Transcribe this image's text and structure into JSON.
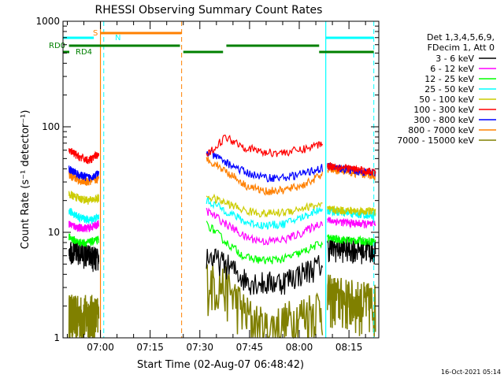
{
  "chart_data": {
    "type": "line",
    "title": "RHESSI Observing Summary Count Rates",
    "xlabel": "Start Time (02-Aug-07 06:48:42)",
    "ylabel": "Count Rate (s⁻¹ detector⁻¹)",
    "xlim": [
      "06:48:42",
      "08:24:00"
    ],
    "ylim": [
      1,
      1000
    ],
    "yscale": "log",
    "x_ticks": [
      "07:00",
      "07:15",
      "07:30",
      "07:45",
      "08:00",
      "08:15"
    ],
    "y_ticks": [
      "1",
      "10",
      "100",
      "1000"
    ],
    "grid": false,
    "legend_position": "top-right",
    "legend_header": [
      "Det 1,3,4,5,6,9,",
      "FDecim 1, Att 0"
    ],
    "timestamp": "16-Oct-2021 05:14",
    "series": [
      {
        "name": "3 - 6 keV",
        "color": "#000000",
        "values": {
          "p1": [
            7,
            6.5,
            6,
            5.5
          ],
          "p2": [
            6,
            5,
            3.6,
            3.3,
            3.5,
            4.2,
            5
          ],
          "p3": [
            7.2,
            7.0,
            6.8
          ]
        }
      },
      {
        "name": "6 - 12 keV",
        "color": "#ff00ff",
        "values": {
          "p1": [
            12,
            11,
            11,
            12
          ],
          "p2": [
            16,
            12,
            9,
            8.2,
            8.5,
            10,
            12.5
          ],
          "p3": [
            13,
            12.2,
            11.8
          ]
        }
      },
      {
        "name": "12 - 25 keV",
        "color": "#00ff00",
        "values": {
          "p1": [
            9,
            8,
            8,
            8.5
          ],
          "p2": [
            12,
            8,
            5.8,
            5.4,
            5.6,
            6.5,
            8
          ],
          "p3": [
            8.8,
            8.4,
            8.2
          ]
        }
      },
      {
        "name": "25 - 50 keV",
        "color": "#00ffff",
        "values": {
          "p1": [
            16,
            14,
            13,
            14
          ],
          "p2": [
            20,
            16,
            12.5,
            11.6,
            12,
            14,
            17
          ],
          "p3": [
            16,
            15,
            14.5
          ]
        }
      },
      {
        "name": "50 - 100 keV",
        "color": "#cccc00",
        "values": {
          "p1": [
            23,
            21,
            20,
            21
          ],
          "p2": [
            22,
            19,
            16,
            15,
            15.5,
            17,
            18.5
          ],
          "p3": [
            16.5,
            16,
            15.8
          ]
        }
      },
      {
        "name": "100 - 300 keV",
        "color": "#ff0000",
        "values": {
          "p1": [
            60,
            52,
            48,
            55
          ],
          "p2": [
            52,
            80,
            64,
            57,
            57,
            61,
            70
          ],
          "p3": [
            43,
            40,
            37
          ]
        }
      },
      {
        "name": "300 - 800 keV",
        "color": "#0000ff",
        "values": {
          "p1": [
            40,
            35,
            33,
            36
          ],
          "p2": [
            58,
            46,
            37,
            33,
            33,
            36,
            41
          ],
          "p3": [
            42,
            39,
            36
          ]
        }
      },
      {
        "name": "800 - 7000 keV",
        "color": "#ff8000",
        "values": {
          "p1": [
            35,
            31,
            30,
            32
          ],
          "p2": [
            50,
            38,
            28,
            24.5,
            25,
            28,
            35
          ],
          "p3": [
            40,
            37,
            34
          ]
        }
      },
      {
        "name": "7000 - 15000 keV",
        "color": "#808000",
        "values": {
          "p1": [
            1.7,
            1.6,
            1.7,
            1.6
          ],
          "p2": [
            3.6,
            3.1,
            1.7,
            1.2,
            1.4,
            1.7,
            2.1
          ],
          "p3": [
            2.6,
            2.3,
            2.1
          ]
        }
      }
    ],
    "annotations": [
      {
        "label": "S",
        "color": "#ff8000"
      },
      {
        "label": "N",
        "color": "#00ffff"
      },
      {
        "label": "RD0",
        "color": "#008000"
      },
      {
        "label": "RD4",
        "color": "#008000"
      }
    ]
  }
}
